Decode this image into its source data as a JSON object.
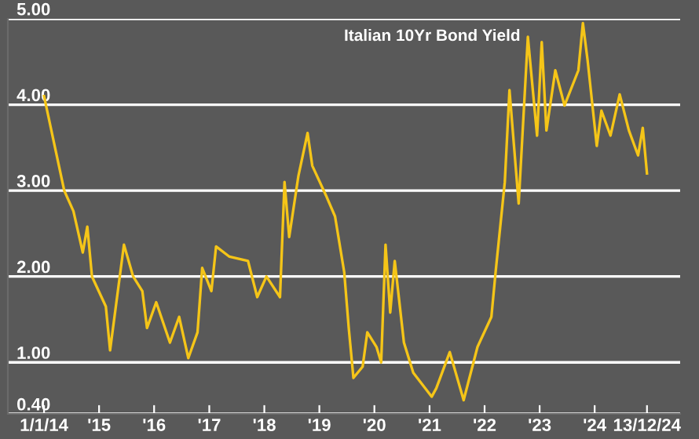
{
  "chart_data": {
    "type": "line",
    "title": "Italian 10Yr Bond Yield",
    "x": [
      "2014-01-01",
      "2014-03",
      "2014-05",
      "2014-07",
      "2014-09",
      "2014-10",
      "2014-11",
      "2015-02",
      "2015-03",
      "2015-06",
      "2015-08",
      "2015-10",
      "2015-11",
      "2016-01",
      "2016-04",
      "2016-06",
      "2016-08",
      "2016-10",
      "2016-11",
      "2017-01",
      "2017-02",
      "2017-05",
      "2017-09",
      "2017-11",
      "2018-01",
      "2018-04",
      "2018-05",
      "2018-06",
      "2018-08",
      "2018-10",
      "2018-11",
      "2019-02",
      "2019-04",
      "2019-06",
      "2019-07",
      "2019-08",
      "2019-10",
      "2019-11",
      "2020-01",
      "2020-02",
      "2020-03",
      "2020-04",
      "2020-05",
      "2020-07",
      "2020-09",
      "2021-01",
      "2021-02",
      "2021-05",
      "2021-08",
      "2021-11",
      "2022-02",
      "2022-03",
      "2022-05",
      "2022-06",
      "2022-08",
      "2022-10",
      "2022-12",
      "2023-01",
      "2023-02",
      "2023-04",
      "2023-06",
      "2023-09",
      "2023-10",
      "2023-11",
      "2024-01",
      "2024-02",
      "2024-04",
      "2024-06",
      "2024-08",
      "2024-10",
      "2024-11",
      "2024-12-13"
    ],
    "series": [
      {
        "color": "#f5c518",
        "values": [
          4.1,
          3.5,
          3.0,
          2.76,
          2.28,
          2.58,
          2.0,
          1.65,
          1.14,
          2.37,
          2.0,
          1.83,
          1.4,
          1.7,
          1.23,
          1.53,
          1.05,
          1.35,
          2.1,
          1.83,
          2.35,
          2.23,
          2.18,
          1.76,
          2.0,
          1.76,
          3.1,
          2.46,
          3.17,
          3.67,
          3.29,
          2.94,
          2.7,
          2.05,
          1.4,
          0.82,
          0.95,
          1.35,
          1.18,
          1.0,
          2.37,
          1.58,
          2.18,
          1.23,
          0.88,
          0.6,
          0.7,
          1.12,
          0.56,
          1.18,
          1.53,
          2.05,
          3.1,
          4.17,
          2.85,
          4.79,
          3.64,
          4.73,
          3.7,
          4.4,
          3.99,
          4.4,
          4.95,
          4.52,
          3.52,
          3.93,
          3.64,
          4.12,
          3.7,
          3.41,
          3.73,
          3.2
        ]
      }
    ],
    "xlim": [
      "2013-05-06",
      "2025-07-21"
    ],
    "xticks": [
      {
        "value": "2014-01-01",
        "label": "1/1/14"
      },
      {
        "value": "2015-01-01",
        "label": "'15"
      },
      {
        "value": "2016-01-01",
        "label": "'16"
      },
      {
        "value": "2017-01-01",
        "label": "'17"
      },
      {
        "value": "2018-01-01",
        "label": "'18"
      },
      {
        "value": "2019-01-01",
        "label": "'19"
      },
      {
        "value": "2020-01-01",
        "label": "'20"
      },
      {
        "value": "2021-01-01",
        "label": "'21"
      },
      {
        "value": "2022-01-01",
        "label": "'22"
      },
      {
        "value": "2023-01-01",
        "label": "'23"
      },
      {
        "value": "2024-01-01",
        "label": "'24"
      },
      {
        "value": "2024-12-13",
        "label": "13/12/24"
      }
    ],
    "ylim": [
      0.4,
      5.0
    ],
    "yticks": [
      {
        "value": 0.4,
        "label": "0.40"
      },
      {
        "value": 1,
        "label": "1.00"
      },
      {
        "value": 2,
        "label": "2.00"
      },
      {
        "value": 3,
        "label": "3.00"
      },
      {
        "value": 4,
        "label": "4.00"
      },
      {
        "value": 5,
        "label": "5.00"
      }
    ],
    "grid": "y",
    "marker": "none",
    "line_style": "solid",
    "legend": false
  }
}
